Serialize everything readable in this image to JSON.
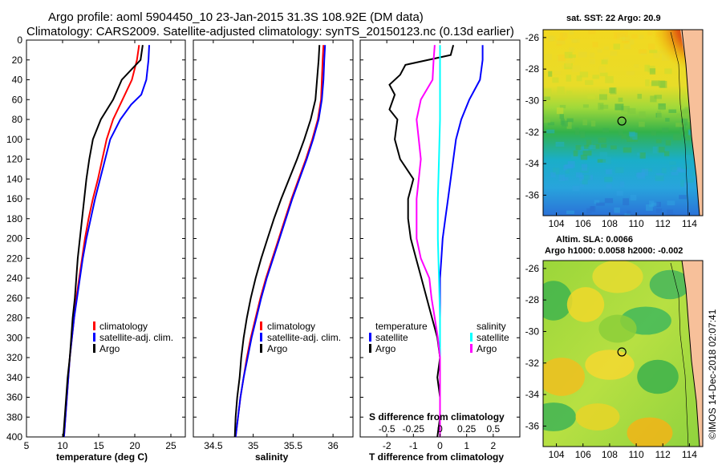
{
  "header": {
    "title_line1": "Argo profile: aoml 5904450_10 23-Jan-2015 31.3S 108.92E (DM data)",
    "title_line2": "Climatology: CARS2009. Satellite-adjusted climatology: synTS_20150123.nc (0.13d earlier)"
  },
  "credit": "©IMOS 14-Dec-2018 02:07:41",
  "colors": {
    "climatology": "#ff0000",
    "satellite": "#0000ff",
    "argo": "#000000",
    "sal_sat": "#00ffff",
    "sal_argo": "#ff00ff"
  },
  "chart_data": [
    {
      "type": "line",
      "name": "temperature",
      "xlabel": "temperature (deg C)",
      "ylabel": "",
      "xlim": [
        5,
        27
      ],
      "ylim": [
        400,
        0
      ],
      "xticks": [
        "5",
        "10",
        "15",
        "20",
        "25"
      ],
      "yticks": [
        "0",
        "20",
        "40",
        "60",
        "80",
        "100",
        "120",
        "140",
        "160",
        "180",
        "200",
        "220",
        "240",
        "260",
        "280",
        "300",
        "320",
        "340",
        "360",
        "380",
        "400"
      ],
      "legend": [
        "climatology",
        "satellite-adj. clim.",
        "Argo"
      ],
      "series": [
        {
          "name": "climatology",
          "depth": [
            5,
            20,
            40,
            60,
            80,
            100,
            120,
            140,
            160,
            180,
            200,
            220,
            240,
            260,
            280,
            300,
            320,
            340,
            360,
            380,
            400
          ],
          "values": [
            20.6,
            20.3,
            19.6,
            18.3,
            17.0,
            16.1,
            15.5,
            14.9,
            14.2,
            13.6,
            13.1,
            12.7,
            12.3,
            11.9,
            11.6,
            11.3,
            11.0,
            10.8,
            10.6,
            10.4,
            10.2
          ]
        },
        {
          "name": "satellite-adj. clim.",
          "depth": [
            5,
            20,
            40,
            55,
            65,
            80,
            100,
            120,
            140,
            160,
            180,
            200,
            220,
            240,
            260,
            280,
            300,
            320,
            340,
            360,
            380,
            400
          ],
          "values": [
            22.0,
            21.9,
            21.6,
            20.9,
            19.5,
            18.0,
            16.6,
            15.9,
            15.2,
            14.5,
            13.9,
            13.3,
            12.8,
            12.4,
            12.0,
            11.6,
            11.3,
            11.0,
            10.8,
            10.6,
            10.4,
            10.2
          ]
        },
        {
          "name": "Argo",
          "depth": [
            5,
            20,
            30,
            40,
            50,
            60,
            80,
            100,
            120,
            140,
            160,
            180,
            200,
            220,
            240,
            260,
            280,
            300,
            320,
            340,
            360,
            380,
            400
          ],
          "values": [
            21.1,
            20.8,
            19.5,
            18.2,
            17.6,
            17.0,
            15.3,
            14.2,
            13.7,
            13.3,
            13.0,
            12.7,
            12.4,
            12.1,
            11.9,
            11.7,
            11.4,
            11.2,
            11.0,
            10.7,
            10.5,
            10.3,
            10.1
          ]
        }
      ]
    },
    {
      "type": "line",
      "name": "salinity",
      "xlabel": "salinity",
      "ylabel": "",
      "xlim": [
        34.25,
        36.25
      ],
      "ylim": [
        400,
        0
      ],
      "xticks": [
        "34.5",
        "35",
        "35.5",
        "36"
      ],
      "legend": [
        "climatology",
        "satellite-adj. clim.",
        "Argo"
      ],
      "series": [
        {
          "name": "climatology",
          "depth": [
            5,
            20,
            40,
            60,
            80,
            100,
            120,
            140,
            160,
            180,
            200,
            220,
            240,
            260,
            280,
            300,
            320,
            340,
            360,
            380,
            400
          ],
          "values": [
            35.88,
            35.87,
            35.86,
            35.85,
            35.81,
            35.74,
            35.66,
            35.57,
            35.48,
            35.4,
            35.32,
            35.24,
            35.16,
            35.09,
            35.03,
            34.97,
            34.92,
            34.88,
            34.84,
            34.81,
            34.78
          ]
        },
        {
          "name": "satellite-adj. clim.",
          "depth": [
            5,
            20,
            40,
            60,
            80,
            100,
            120,
            140,
            160,
            180,
            200,
            220,
            240,
            260,
            280,
            300,
            320,
            340,
            360,
            380,
            400
          ],
          "values": [
            35.9,
            35.89,
            35.88,
            35.86,
            35.82,
            35.75,
            35.67,
            35.58,
            35.49,
            35.41,
            35.33,
            35.25,
            35.17,
            35.1,
            35.04,
            34.98,
            34.93,
            34.88,
            34.84,
            34.81,
            34.78
          ]
        },
        {
          "name": "Argo",
          "depth": [
            5,
            20,
            40,
            60,
            80,
            100,
            120,
            140,
            160,
            180,
            200,
            220,
            240,
            260,
            280,
            300,
            320,
            340,
            360,
            380,
            400
          ],
          "values": [
            35.83,
            35.82,
            35.8,
            35.78,
            35.72,
            35.64,
            35.55,
            35.45,
            35.35,
            35.26,
            35.18,
            35.1,
            35.03,
            34.97,
            34.92,
            34.88,
            34.85,
            34.83,
            34.8,
            34.78,
            34.77
          ]
        }
      ]
    },
    {
      "type": "line",
      "name": "differences",
      "xlabel": "T difference from climatology",
      "top_label": "S difference from climatology",
      "xlim": [
        -3,
        3
      ],
      "ylim": [
        400,
        0
      ],
      "xticks": [
        "-2",
        "-1",
        "0",
        "1",
        "2"
      ],
      "sticks": [
        "-0.5",
        "-0.25",
        "0",
        "0.25",
        "0.5"
      ],
      "legend_temperature": {
        "title": "temperature",
        "items": [
          "satellite",
          "Argo"
        ]
      },
      "legend_salinity": {
        "title": "salinity",
        "items": [
          "satellite",
          "Argo"
        ]
      },
      "series": [
        {
          "name": "T satellite",
          "depth": [
            5,
            20,
            40,
            60,
            80,
            100,
            120,
            140,
            160,
            180,
            200,
            220,
            240,
            260,
            280,
            300,
            320,
            340,
            360,
            380,
            400
          ],
          "values": [
            1.6,
            1.6,
            1.5,
            1.1,
            0.8,
            0.6,
            0.5,
            0.4,
            0.3,
            0.2,
            0.1,
            0.05,
            0.0,
            0.0,
            0.0,
            0.0,
            0.0,
            0.0,
            0.0,
            0.0,
            0.0
          ]
        },
        {
          "name": "T Argo",
          "depth": [
            5,
            15,
            25,
            35,
            45,
            55,
            70,
            80,
            100,
            120,
            140,
            160,
            180,
            200,
            220,
            240,
            260,
            280,
            300,
            320,
            340,
            360,
            380,
            400
          ],
          "values": [
            0.5,
            0.4,
            -1.3,
            -1.5,
            -1.9,
            -1.7,
            -1.9,
            -1.6,
            -1.7,
            -1.5,
            -1.0,
            -1.2,
            -1.2,
            -1.1,
            -0.9,
            -0.7,
            -0.5,
            -0.3,
            -0.1,
            0.0,
            -0.1,
            0.0,
            0.0,
            -0.1
          ]
        },
        {
          "name": "S satellite",
          "depth": [
            5,
            40,
            80,
            120,
            160,
            200,
            240,
            280,
            320,
            360,
            400
          ],
          "values": [
            0.0,
            0.0,
            0.0,
            -0.01,
            -0.02,
            -0.02,
            -0.01,
            0.0,
            0.0,
            0.0,
            0.0
          ]
        },
        {
          "name": "S Argo",
          "depth": [
            5,
            20,
            40,
            60,
            80,
            100,
            120,
            140,
            160,
            180,
            200,
            220,
            240,
            260,
            280,
            300,
            320,
            340,
            360,
            380,
            400
          ],
          "values": [
            -0.05,
            -0.06,
            -0.07,
            -0.18,
            -0.22,
            -0.2,
            -0.18,
            -0.2,
            -0.22,
            -0.22,
            -0.22,
            -0.18,
            -0.1,
            -0.08,
            -0.05,
            -0.02,
            0.0,
            0.0,
            0.0,
            0.0,
            0.0
          ]
        }
      ]
    },
    {
      "type": "heatmap",
      "name": "sst-map",
      "title": "sat. SST: 22 Argo: 20.9",
      "xticks": [
        "104",
        "106",
        "108",
        "110",
        "112",
        "114"
      ],
      "yticks": [
        "-26",
        "-28",
        "-30",
        "-32",
        "-34",
        "-36"
      ],
      "xlim": [
        103,
        115
      ],
      "ylim": [
        -37.3,
        -25.5
      ],
      "argo_position": [
        108.92,
        -31.3
      ]
    },
    {
      "type": "heatmap",
      "name": "sla-map",
      "title": "Altim. SLA: 0.0066",
      "subtitle": "Argo h1000: 0.0058 h2000: -0.002",
      "xticks": [
        "104",
        "106",
        "108",
        "110",
        "112",
        "114"
      ],
      "yticks": [
        "-26",
        "-28",
        "-30",
        "-32",
        "-34",
        "-36"
      ],
      "xlim": [
        103,
        115
      ],
      "ylim": [
        -37.3,
        -25.5
      ],
      "argo_position": [
        108.92,
        -31.3
      ]
    }
  ]
}
